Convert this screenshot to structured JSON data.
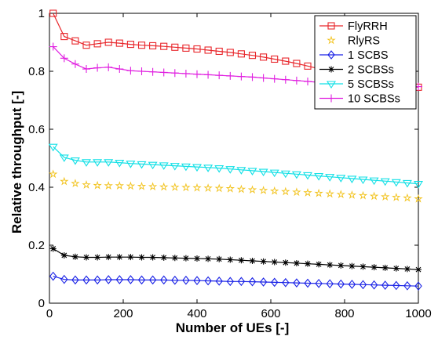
{
  "chart_data": {
    "type": "line",
    "title": "",
    "xlabel": "Number of UEs [-]",
    "ylabel": "Relative throughput [-]",
    "xlim": [
      0,
      1000
    ],
    "ylim": [
      0,
      1
    ],
    "xticks": [
      0,
      200,
      400,
      600,
      800,
      1000
    ],
    "yticks": [
      0,
      0.2,
      0.4,
      0.6,
      0.8,
      1
    ],
    "xtick_labels": [
      "0",
      "200",
      "400",
      "600",
      "800",
      "1000"
    ],
    "ytick_labels": [
      "0",
      "0.2",
      "0.4",
      "0.6",
      "0.8",
      "1"
    ],
    "grid": false,
    "legend_position": "top-right",
    "x": [
      10,
      40,
      70,
      100,
      130,
      160,
      190,
      220,
      250,
      280,
      310,
      340,
      370,
      400,
      430,
      460,
      490,
      520,
      550,
      580,
      610,
      640,
      670,
      700,
      730,
      760,
      790,
      820,
      850,
      880,
      910,
      940,
      970,
      1000
    ],
    "series": [
      {
        "name": "FlyRRH",
        "color": "#e8262b",
        "marker": "square",
        "line": true,
        "values": [
          1.0,
          0.92,
          0.905,
          0.89,
          0.895,
          0.9,
          0.897,
          0.893,
          0.89,
          0.888,
          0.886,
          0.883,
          0.88,
          0.877,
          0.873,
          0.869,
          0.865,
          0.86,
          0.855,
          0.849,
          0.842,
          0.835,
          0.827,
          0.818,
          0.809,
          0.8,
          0.792,
          0.785,
          0.778,
          0.772,
          0.765,
          0.758,
          0.751,
          0.745
        ]
      },
      {
        "name": "RlyRS",
        "color": "#f2c21a",
        "marker": "star",
        "line": false,
        "values": [
          0.445,
          0.42,
          0.413,
          0.408,
          0.406,
          0.405,
          0.405,
          0.404,
          0.403,
          0.402,
          0.401,
          0.4,
          0.399,
          0.398,
          0.397,
          0.396,
          0.395,
          0.393,
          0.391,
          0.389,
          0.387,
          0.385,
          0.383,
          0.381,
          0.379,
          0.377,
          0.375,
          0.373,
          0.371,
          0.369,
          0.367,
          0.365,
          0.363,
          0.36
        ]
      },
      {
        "name": "1 SCBS",
        "color": "#1a22e6",
        "marker": "diamond",
        "line": true,
        "values": [
          0.093,
          0.082,
          0.08,
          0.08,
          0.08,
          0.081,
          0.081,
          0.081,
          0.08,
          0.08,
          0.08,
          0.079,
          0.079,
          0.078,
          0.077,
          0.076,
          0.075,
          0.075,
          0.074,
          0.073,
          0.072,
          0.071,
          0.07,
          0.069,
          0.068,
          0.067,
          0.066,
          0.065,
          0.064,
          0.063,
          0.062,
          0.061,
          0.06,
          0.059
        ]
      },
      {
        "name": "2 SCBSs",
        "color": "#000000",
        "marker": "asterisk",
        "line": true,
        "values": [
          0.188,
          0.165,
          0.16,
          0.158,
          0.158,
          0.159,
          0.159,
          0.159,
          0.158,
          0.158,
          0.157,
          0.156,
          0.155,
          0.154,
          0.153,
          0.152,
          0.15,
          0.148,
          0.146,
          0.144,
          0.142,
          0.14,
          0.138,
          0.136,
          0.134,
          0.132,
          0.13,
          0.128,
          0.126,
          0.124,
          0.122,
          0.12,
          0.118,
          0.116
        ]
      },
      {
        "name": "5 SCBSs",
        "color": "#12e0e6",
        "marker": "triangle-down",
        "line": true,
        "values": [
          0.54,
          0.503,
          0.493,
          0.487,
          0.487,
          0.487,
          0.485,
          0.482,
          0.48,
          0.478,
          0.476,
          0.474,
          0.472,
          0.47,
          0.468,
          0.466,
          0.463,
          0.46,
          0.457,
          0.454,
          0.451,
          0.448,
          0.445,
          0.442,
          0.439,
          0.436,
          0.433,
          0.43,
          0.427,
          0.424,
          0.421,
          0.418,
          0.415,
          0.412
        ]
      },
      {
        "name": "10 SCBSs",
        "color": "#e01fe0",
        "marker": "plus",
        "line": true,
        "values": [
          0.885,
          0.845,
          0.825,
          0.808,
          0.812,
          0.814,
          0.808,
          0.802,
          0.8,
          0.798,
          0.796,
          0.794,
          0.792,
          0.79,
          0.788,
          0.786,
          0.784,
          0.782,
          0.78,
          0.777,
          0.774,
          0.771,
          0.768,
          0.765,
          0.762,
          0.759,
          0.757,
          0.755,
          0.753,
          0.751,
          0.75,
          0.749,
          0.748,
          0.747
        ]
      }
    ]
  }
}
